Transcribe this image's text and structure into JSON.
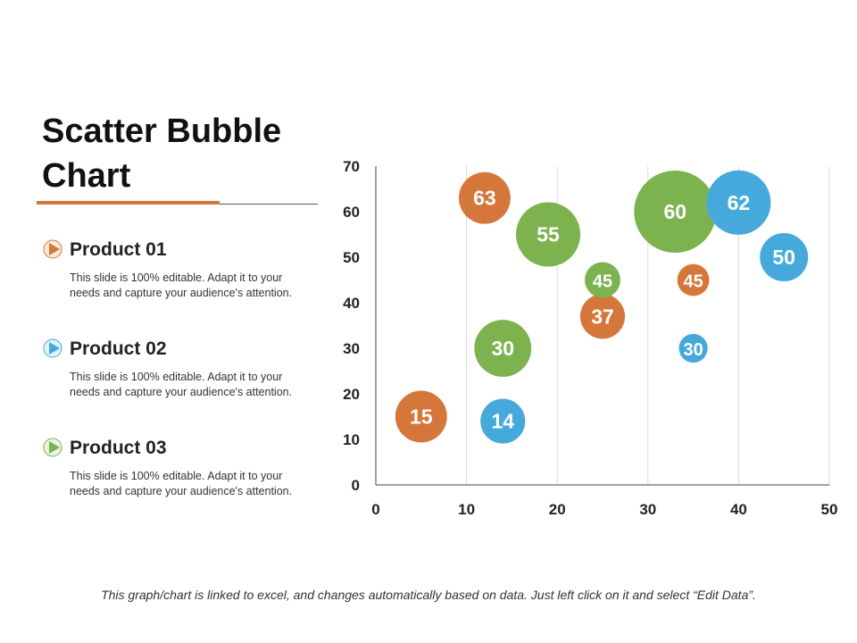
{
  "title": "Scatter Bubble Chart",
  "colors": {
    "accent": "#D5773B",
    "orange": "#D5773B",
    "green": "#7DB34F",
    "blue": "#46A9DC"
  },
  "products": [
    {
      "name": "Product 01",
      "icon": "play-circle-icon",
      "color": "#D5773B",
      "desc": "This slide is 100% editable. Adapt it to your needs and capture your audience's attention."
    },
    {
      "name": "Product 02",
      "icon": "play-circle-icon",
      "color": "#46A9DC",
      "desc": "This slide is 100% editable. Adapt it to your needs and capture your audience's attention."
    },
    {
      "name": "Product 03",
      "icon": "play-circle-icon",
      "color": "#7DB34F",
      "desc": "This slide is 100% editable. Adapt it to your needs and capture your audience's attention."
    }
  ],
  "footer": "This graph/chart is linked to excel, and changes automatically based on data. Just left click on it and select “Edit Data”.",
  "chart_data": {
    "type": "scatter",
    "subtype": "bubble",
    "xlim": [
      0,
      50
    ],
    "ylim": [
      0,
      70
    ],
    "xticks": [
      "0",
      "10",
      "20",
      "30",
      "40",
      "50"
    ],
    "yticks": [
      "0",
      "10",
      "20",
      "30",
      "40",
      "50",
      "60",
      "70"
    ],
    "grid": "vertical",
    "data_labels": "y value",
    "series": [
      {
        "color": "#D5773B",
        "points": [
          {
            "x": 5,
            "y": 15,
            "size": 84,
            "label": "15"
          },
          {
            "x": 12,
            "y": 63,
            "size": 84,
            "label": "63"
          },
          {
            "x": 25,
            "y": 37,
            "size": 63,
            "label": "37"
          },
          {
            "x": 35,
            "y": 45,
            "size": 32,
            "label": "45"
          }
        ]
      },
      {
        "color": "#7DB34F",
        "points": [
          {
            "x": 14,
            "y": 30,
            "size": 102,
            "label": "30"
          },
          {
            "x": 19,
            "y": 55,
            "size": 130,
            "label": "55"
          },
          {
            "x": 25,
            "y": 45,
            "size": 40,
            "label": "45"
          },
          {
            "x": 33,
            "y": 60,
            "size": 212,
            "label": "60"
          }
        ]
      },
      {
        "color": "#46A9DC",
        "points": [
          {
            "x": 14,
            "y": 14,
            "size": 63,
            "label": "14"
          },
          {
            "x": 35,
            "y": 30,
            "size": 26,
            "label": "30"
          },
          {
            "x": 40,
            "y": 62,
            "size": 130,
            "label": "62"
          },
          {
            "x": 45,
            "y": 50,
            "size": 73,
            "label": "50"
          }
        ]
      }
    ]
  }
}
